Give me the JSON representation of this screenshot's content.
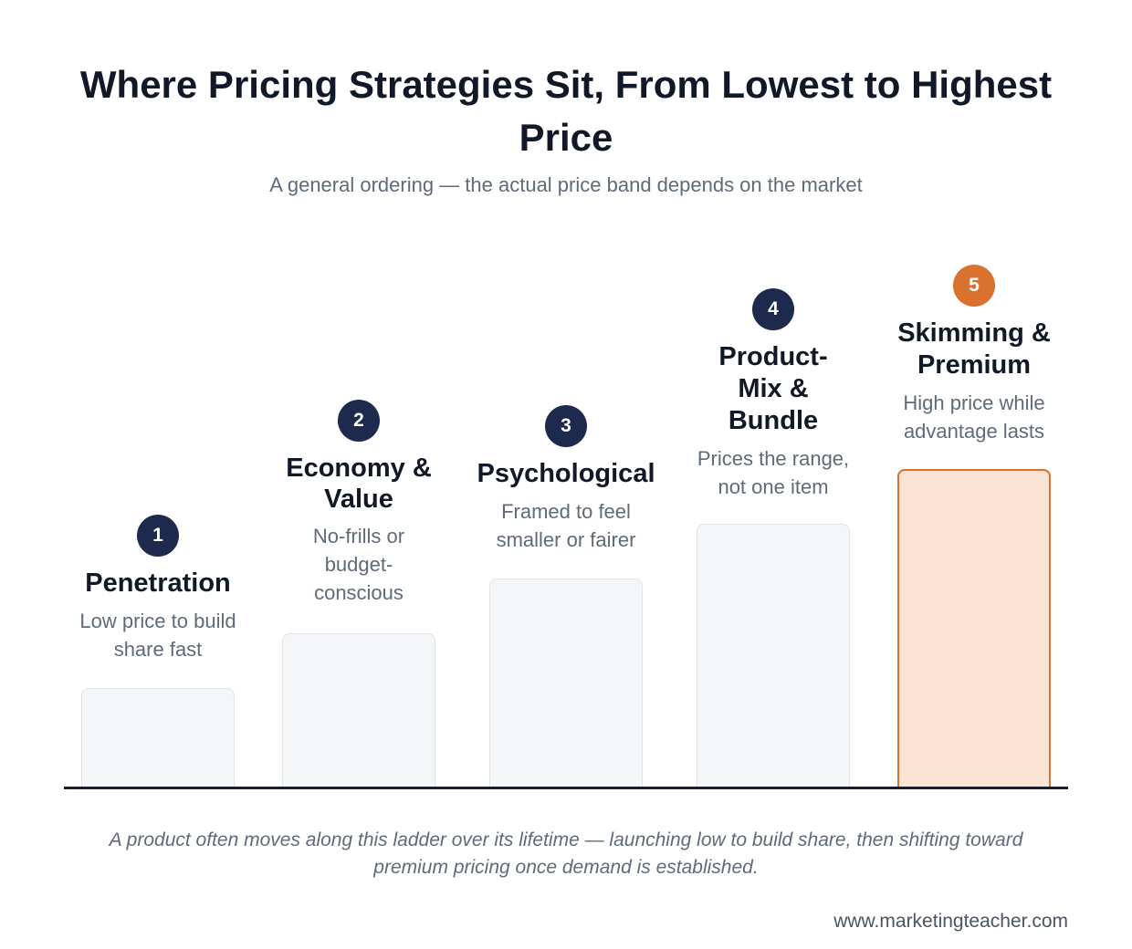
{
  "title": "Where Pricing Strategies Sit, From Lowest to Highest Price",
  "subtitle": "A general ordering — the actual price band depends on the market",
  "steps": [
    {
      "number": "1",
      "title": "Penetration",
      "description": "Low price to build share fast",
      "relative_price": 1,
      "highlighted": false
    },
    {
      "number": "2",
      "title": "Economy & Value",
      "description": "No-frills or budget-conscious",
      "relative_price": 2,
      "highlighted": false
    },
    {
      "number": "3",
      "title": "Psychological",
      "description": "Framed to feel smaller or fairer",
      "relative_price": 3,
      "highlighted": false
    },
    {
      "number": "4",
      "title": "Product-Mix & Bundle",
      "description": "Prices the range, not one item",
      "relative_price": 4,
      "highlighted": false
    },
    {
      "number": "5",
      "title": "Skimming & Premium",
      "description": "High price while advantage lasts",
      "relative_price": 5,
      "highlighted": true
    }
  ],
  "footnote": "A product often moves along this ladder over its lifetime — launching low to build share, then shifting toward premium pricing once demand is established.",
  "source": "www.marketingteacher.com",
  "colors": {
    "badge": "#1d2a4d",
    "accent": "#d9722e",
    "accent_fill": "#fae3d2",
    "bar_fill": "#f5f6f8"
  }
}
